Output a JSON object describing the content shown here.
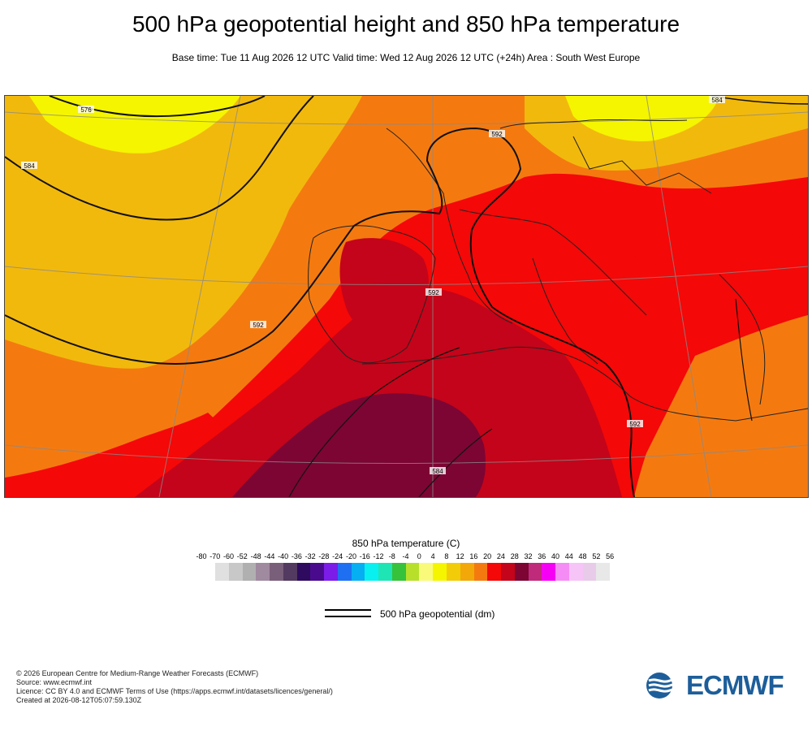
{
  "header": {
    "title": "500 hPa geopotential height and 850 hPa temperature",
    "subtitle": "Base time: Tue 11 Aug 2026 12 UTC Valid time: Wed 12 Aug 2026 12 UTC (+24h) Area : South West Europe"
  },
  "colors": {
    "t16": "#f2b90d",
    "t20": "#f47a10",
    "t24": "#f40808",
    "t28": "#c4041a",
    "t32": "#7c0533",
    "yellow": "#f5f500",
    "contour": "#111111",
    "coast": "#222222",
    "grid": "#8a8a8a"
  },
  "contour_labels": [
    "576",
    "584",
    "584",
    "592",
    "592",
    "592",
    "592",
    "584"
  ],
  "colorbar": {
    "title": "850 hPa temperature (C)",
    "ticks": [
      "-80",
      "-70",
      "-60",
      "-52",
      "-48",
      "-44",
      "-40",
      "-36",
      "-32",
      "-28",
      "-24",
      "-20",
      "-16",
      "-12",
      "-8",
      "-4",
      "0",
      "4",
      "8",
      "12",
      "16",
      "20",
      "24",
      "28",
      "32",
      "36",
      "40",
      "44",
      "48",
      "52",
      "56"
    ],
    "colors": [
      "#e0e0e0",
      "#c8c8c8",
      "#b0b0b0",
      "#a08aa0",
      "#7a5f7a",
      "#523a60",
      "#2e0b5e",
      "#4a0a8e",
      "#7b1ce8",
      "#1f6ff2",
      "#06aff2",
      "#08f0f0",
      "#1fe5b5",
      "#36c23a",
      "#b8e02a",
      "#fafa7a",
      "#f5f500",
      "#f2cc08",
      "#f2a808",
      "#f47a10",
      "#f40808",
      "#c4041a",
      "#7c0533",
      "#c02a7a",
      "#f500f5",
      "#f58cf5",
      "#f7c4f7",
      "#e8cbe8",
      "#e8e8e8"
    ]
  },
  "legend": {
    "line_label": "500 hPa geopotential (dm)"
  },
  "footer": {
    "line1": "© 2026 European Centre for Medium-Range Weather Forecasts (ECMWF)",
    "line2": "Source: www.ecmwf.int",
    "line3": "Licence: CC BY 4.0 and ECMWF Terms of Use (https://apps.ecmwf.int/datasets/licences/general/)",
    "line4": "Created at 2026-08-12T05:07:59.130Z"
  },
  "logo": {
    "text": "ECMWF"
  }
}
